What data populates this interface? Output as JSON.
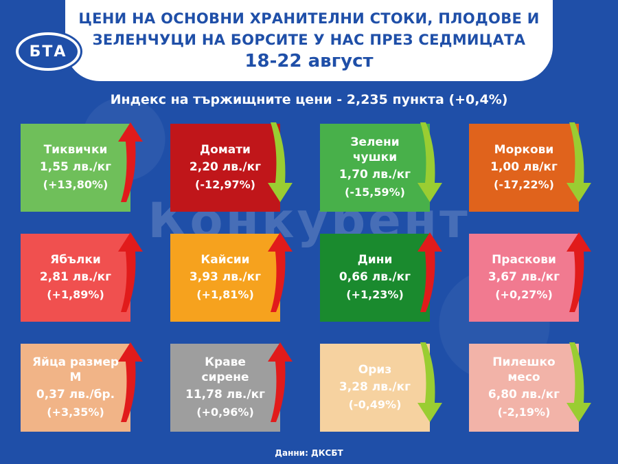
{
  "header": {
    "title_line1": "ЦЕНИ НА ОСНОВНИ ХРАНИТЕЛНИ СТОКИ, ПЛОДОВЕ И",
    "title_line2": "ЗЕЛЕНЧУЦИ НА БОРСИТЕ У НАС ПРЕЗ СЕДМИЦАТА",
    "dates": "18-22 август"
  },
  "logo": {
    "text": "БТА"
  },
  "index_line": "Индекс на тържищните цени - 2,235 пункта (+0,4%)",
  "watermark": "Конкурент",
  "footer": "Данни: ДКСБТ",
  "colors": {
    "background": "#1f4fa8",
    "arrow_up": "#e11b1b",
    "arrow_down": "#9acd32"
  },
  "cards": [
    {
      "name": "Тиквички",
      "price": "1,55 лв./кг",
      "change": "(+13,80%)",
      "color": "#6fbf5a",
      "trend": "up"
    },
    {
      "name": "Домати",
      "price": "2,20 лв./кг",
      "change": "(-12,97%)",
      "color": "#c0161a",
      "trend": "down"
    },
    {
      "name": "Зелени чушки",
      "price": "1,70 лв./кг",
      "change": "(-15,59%)",
      "color": "#48b04a",
      "trend": "down"
    },
    {
      "name": "Моркови",
      "price": "1,00 лв/кг",
      "change": "(-17,22%)",
      "color": "#e0631c",
      "trend": "down"
    },
    {
      "name": "Ябълки",
      "price": "2,81 лв./кг",
      "change": "(+1,89%)",
      "color": "#f0504f",
      "trend": "up"
    },
    {
      "name": "Кайсии",
      "price": "3,93 лв./кг",
      "change": "(+1,81%)",
      "color": "#f6a21e",
      "trend": "up"
    },
    {
      "name": "Дини",
      "price": "0,66 лв./кг",
      "change": "(+1,23%)",
      "color": "#1a8a2e",
      "trend": "up"
    },
    {
      "name": "Праскови",
      "price": "3,67 лв./кг",
      "change": "(+0,27%)",
      "color": "#f17a90",
      "trend": "up"
    },
    {
      "name": "Яйца размер М",
      "price": "0,37 лв./бр.",
      "change": "(+3,35%)",
      "color": "#f1b487",
      "trend": "up"
    },
    {
      "name": "Краве сирене",
      "price": "11,78 лв./кг",
      "change": "(+0,96%)",
      "color": "#9e9e9e",
      "trend": "up"
    },
    {
      "name": "Ориз",
      "price": "3,28 лв./кг",
      "change": "(-0,49%)",
      "color": "#f6d2a0",
      "trend": "down"
    },
    {
      "name": "Пилешко месо",
      "price": "6,80 лв./кг",
      "change": "(-2,19%)",
      "color": "#f2b3a8",
      "trend": "down"
    }
  ]
}
